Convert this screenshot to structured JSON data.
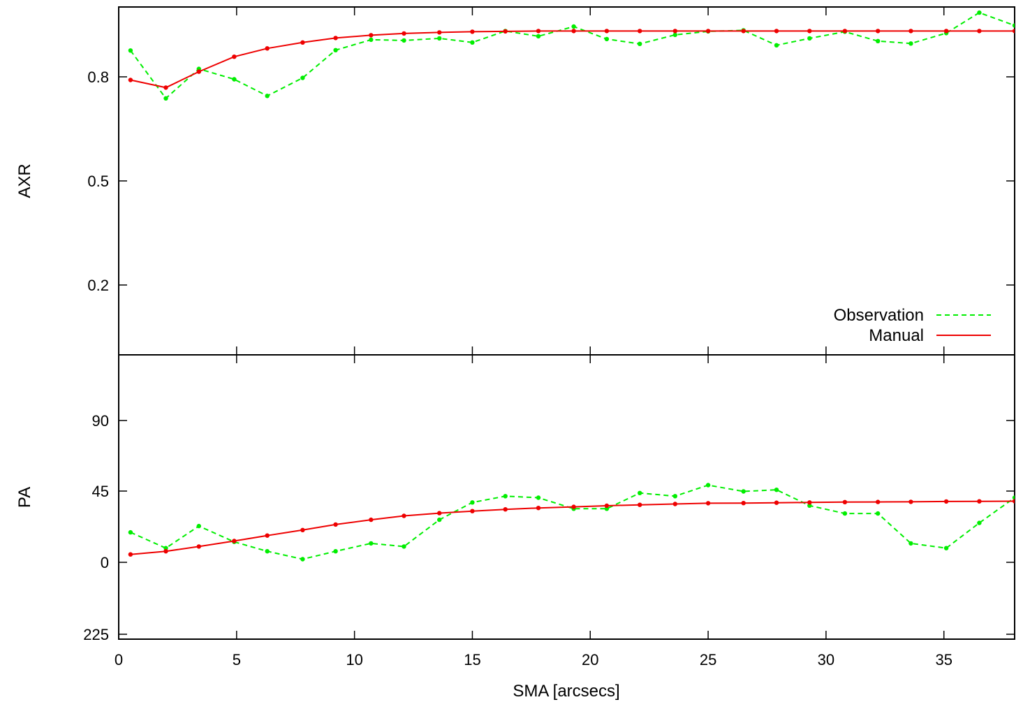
{
  "chart_data": [
    {
      "type": "line",
      "ylabel": "AXR",
      "xlim": [
        0,
        38
      ],
      "ylim": [
        0,
        1
      ],
      "yticks": [
        0.2,
        0.5,
        0.8
      ],
      "legend": "bottom-right",
      "series": [
        {
          "name": "Observation",
          "color": "#00ee00",
          "style": "dashed",
          "x": [
            0.5,
            2.0,
            3.4,
            4.9,
            6.3,
            7.8,
            9.2,
            10.7,
            12.1,
            13.6,
            15.0,
            16.4,
            17.8,
            19.3,
            20.7,
            22.1,
            23.6,
            25.0,
            26.5,
            27.9,
            29.3,
            30.8,
            32.2,
            33.6,
            35.1,
            36.5,
            38.0
          ],
          "values": [
            0.876,
            0.738,
            0.823,
            0.793,
            0.745,
            0.797,
            0.877,
            0.907,
            0.905,
            0.911,
            0.899,
            0.932,
            0.917,
            0.945,
            0.909,
            0.895,
            0.921,
            0.931,
            0.934,
            0.891,
            0.911,
            0.93,
            0.903,
            0.896,
            0.926,
            0.985,
            0.948
          ]
        },
        {
          "name": "Manual",
          "color": "#ee0000",
          "style": "solid",
          "x": [
            0.5,
            2.0,
            3.4,
            4.9,
            6.3,
            7.8,
            9.2,
            10.7,
            12.1,
            13.6,
            15.0,
            16.4,
            17.8,
            19.3,
            20.7,
            22.1,
            23.6,
            25.0,
            26.5,
            27.9,
            29.3,
            30.8,
            32.2,
            33.6,
            35.1,
            36.5,
            38.0
          ],
          "values": [
            0.791,
            0.769,
            0.815,
            0.858,
            0.882,
            0.899,
            0.912,
            0.92,
            0.925,
            0.928,
            0.93,
            0.931,
            0.932,
            0.932,
            0.932,
            0.932,
            0.932,
            0.932,
            0.932,
            0.932,
            0.932,
            0.932,
            0.932,
            0.932,
            0.932,
            0.932,
            0.932
          ]
        }
      ]
    },
    {
      "type": "line",
      "ylabel": "PA",
      "xlabel": "SMA [arcsecs]",
      "xlim": [
        0,
        38
      ],
      "yticks": [
        "225",
        "0",
        "45",
        "90"
      ],
      "series": [
        {
          "name": "Observation",
          "color": "#00ee00",
          "style": "dashed",
          "x": [
            0.5,
            2.0,
            3.4,
            4.9,
            6.3,
            7.8,
            9.2,
            10.7,
            12.1,
            13.6,
            15.0,
            16.4,
            17.8,
            19.3,
            20.7,
            22.1,
            23.6,
            25.0,
            26.5,
            27.9,
            29.3,
            30.8,
            32.2,
            33.6,
            35.1,
            36.5,
            38.0
          ],
          "values": [
            19,
            9,
            23,
            13,
            7,
            2,
            7,
            12,
            10,
            27,
            38,
            42,
            41,
            34,
            34,
            44,
            42,
            49,
            45,
            46,
            36,
            31,
            31,
            12,
            9,
            25,
            41
          ]
        },
        {
          "name": "Manual",
          "color": "#ee0000",
          "style": "solid",
          "x": [
            0.5,
            2.0,
            3.4,
            4.9,
            6.3,
            7.8,
            9.2,
            10.7,
            12.1,
            13.6,
            15.0,
            16.4,
            17.8,
            19.3,
            20.7,
            22.1,
            23.6,
            25.0,
            26.5,
            27.9,
            29.3,
            30.8,
            32.2,
            33.6,
            35.1,
            36.5,
            38.0
          ],
          "values": [
            5,
            7,
            10,
            13.5,
            17,
            20.5,
            24,
            27,
            29.5,
            31.2,
            32.5,
            33.6,
            34.5,
            35.2,
            35.9,
            36.5,
            37.0,
            37.5,
            37.6,
            37.8,
            38.0,
            38.2,
            38.3,
            38.4,
            38.6,
            38.7,
            38.8
          ]
        }
      ]
    }
  ],
  "xaxis": {
    "ticks": [
      0,
      5,
      10,
      15,
      20,
      25,
      30,
      35
    ],
    "label": "SMA [arcsecs]"
  }
}
